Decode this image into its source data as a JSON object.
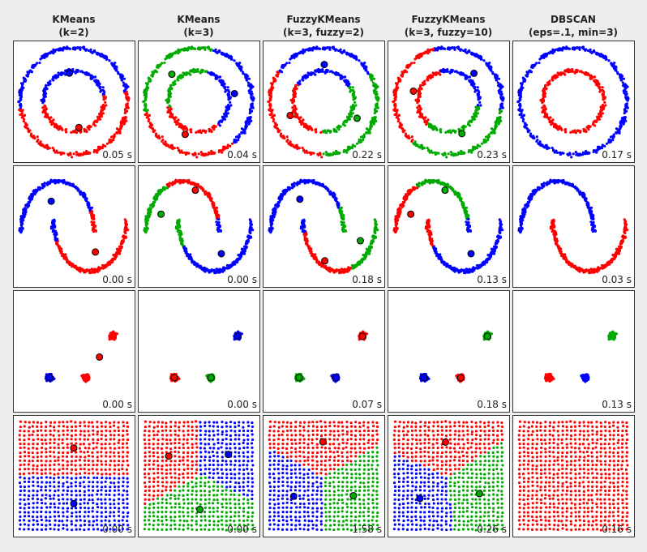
{
  "columns": [
    {
      "title": "KMeans",
      "params": "(k=2)"
    },
    {
      "title": "KMeans",
      "params": "(k=3)"
    },
    {
      "title": "FuzzyKMeans",
      "params": "(k=3, fuzzy=2)"
    },
    {
      "title": "FuzzyKMeans",
      "params": "(k=3, fuzzy=10)"
    },
    {
      "title": "DBSCAN",
      "params": "(eps=.1, min=3)"
    }
  ],
  "rows": [
    {
      "times": [
        "0.05 s",
        "0.04 s",
        "0.22 s",
        "0.23 s",
        "0.17 s"
      ]
    },
    {
      "times": [
        "0.00 s",
        "0.00 s",
        "0.18 s",
        "0.13 s",
        "0.03 s"
      ]
    },
    {
      "times": [
        "0.00 s",
        "0.00 s",
        "0.07 s",
        "0.18 s",
        "0.13 s"
      ]
    },
    {
      "times": [
        "0.00 s",
        "0.00 s",
        "1.58 s",
        "0.26 s",
        "0.16 s"
      ]
    }
  ]
}
